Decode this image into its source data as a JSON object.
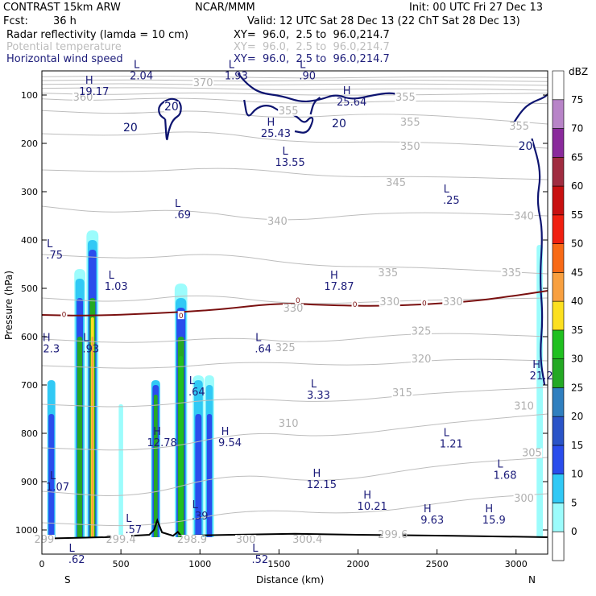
{
  "header": {
    "model": "CONTRAST 15km ARW",
    "center": "NCAR/MMM",
    "init": "Init: 00 UTC Fri 27 Dec 13",
    "fcst_label": "Fcst:",
    "fcst_value": "36 h",
    "valid": "Valid: 12 UTC Sat 28 Dec 13 (22 ChT Sat 28 Dec 13)"
  },
  "fields": [
    {
      "name": "Radar reflectivity (lamda = 10 cm)",
      "xy": "XY=  96.0,  2.5 to  96.0,214.7",
      "color": "#000000"
    },
    {
      "name": "Potential temperature",
      "xy": "XY=  96.0,  2.5 to  96.0,214.7",
      "color": "#bdbdbd"
    },
    {
      "name": "Horizontal wind speed",
      "xy": "XY=  96.0,  2.5 to  96.0,214.7",
      "color": "#1c1c7a"
    }
  ],
  "chart_data": {
    "type": "cross-section",
    "xlabel": "Distance (km)",
    "ylabel": "Pressure (hPa)",
    "xlim": [
      0,
      3200
    ],
    "ylim": [
      1050,
      50
    ],
    "x_ticks": [
      0,
      500,
      1000,
      1500,
      2000,
      2500,
      3000
    ],
    "y_ticks": [
      100,
      200,
      300,
      400,
      500,
      600,
      700,
      800,
      900,
      1000
    ],
    "endpoints": {
      "left": "S",
      "right": "N"
    },
    "colorbar": {
      "unit": "dBZ",
      "levels": [
        0,
        5,
        10,
        15,
        20,
        25,
        30,
        35,
        40,
        45,
        50,
        55,
        60,
        65,
        70,
        75
      ],
      "colors": [
        "#ffffff",
        "#9cfcfc",
        "#31c9f5",
        "#2a4dec",
        "#2a54c8",
        "#2f7fbf",
        "#24a924",
        "#20c020",
        "#fce020",
        "#f8a040",
        "#f86a16",
        "#f02010",
        "#c81010",
        "#a02c40",
        "#8a2a9c",
        "#b884c8"
      ]
    },
    "theta_labels": [
      {
        "v": "370",
        "x": 1020,
        "p": 80
      },
      {
        "v": "360",
        "x": 260,
        "p": 110
      },
      {
        "v": "355",
        "x": 1560,
        "p": 138
      },
      {
        "v": "355",
        "x": 2300,
        "p": 110
      },
      {
        "v": "355",
        "x": 2330,
        "p": 162
      },
      {
        "v": "355",
        "x": 3020,
        "p": 170
      },
      {
        "v": "350",
        "x": 2330,
        "p": 212
      },
      {
        "v": "345",
        "x": 2240,
        "p": 287
      },
      {
        "v": "340",
        "x": 1490,
        "p": 367
      },
      {
        "v": "340",
        "x": 3050,
        "p": 356
      },
      {
        "v": "335",
        "x": 2190,
        "p": 473
      },
      {
        "v": "335",
        "x": 2970,
        "p": 473
      },
      {
        "v": "330",
        "x": 1590,
        "p": 547
      },
      {
        "v": "330",
        "x": 2200,
        "p": 533
      },
      {
        "v": "330",
        "x": 2600,
        "p": 533
      },
      {
        "v": "325",
        "x": 1540,
        "p": 628
      },
      {
        "v": "325",
        "x": 2400,
        "p": 594
      },
      {
        "v": "320",
        "x": 2400,
        "p": 652
      },
      {
        "v": "315",
        "x": 2280,
        "p": 722
      },
      {
        "v": "310",
        "x": 1560,
        "p": 785
      },
      {
        "v": "310",
        "x": 3050,
        "p": 749
      },
      {
        "v": "305",
        "x": 3100,
        "p": 846
      },
      {
        "v": "300",
        "x": 3050,
        "p": 940
      },
      {
        "v": "299.4",
        "x": 500,
        "p": 1025
      },
      {
        "v": "298.9",
        "x": 950,
        "p": 1025
      },
      {
        "v": "300",
        "x": 1290,
        "p": 1025
      },
      {
        "v": "300.4",
        "x": 1680,
        "p": 1025
      },
      {
        "v": "299.6",
        "x": 2220,
        "p": 1015
      },
      {
        "v": "299",
        "x": 15,
        "p": 1025
      }
    ],
    "wind_labels": [
      {
        "v": "20",
        "x": 820,
        "p": 130
      },
      {
        "v": "20",
        "x": 560,
        "p": 173
      },
      {
        "v": "20",
        "x": 1880,
        "p": 165
      },
      {
        "v": "20",
        "x": 3060,
        "p": 212
      }
    ],
    "zero_labels": [
      {
        "v": "0",
        "x": 140,
        "p": 554
      },
      {
        "v": "0",
        "x": 880,
        "p": 557
      },
      {
        "v": "0",
        "x": 1620,
        "p": 525
      },
      {
        "v": "0",
        "x": 1980,
        "p": 533
      },
      {
        "v": "0",
        "x": 2420,
        "p": 531
      }
    ],
    "extrema": [
      {
        "t": "L",
        "v": "2.04",
        "x": 630,
        "p": 64,
        "c": "navy"
      },
      {
        "t": "L",
        "v": "1.93",
        "x": 1230,
        "p": 64,
        "c": "navy"
      },
      {
        "t": "L",
        "v": ".90",
        "x": 1680,
        "p": 64,
        "c": "navy"
      },
      {
        "t": "H",
        "v": "19.17",
        "x": 330,
        "p": 97,
        "c": "navy"
      },
      {
        "t": "H",
        "v": "25.64",
        "x": 1960,
        "p": 118,
        "c": "navy"
      },
      {
        "t": "H",
        "v": "25.43",
        "x": 1480,
        "p": 183,
        "c": "navy"
      },
      {
        "t": "L",
        "v": "13.55",
        "x": 1570,
        "p": 243,
        "c": "navy"
      },
      {
        "t": "L",
        "v": ".25",
        "x": 2590,
        "p": 322,
        "c": "navy"
      },
      {
        "t": "L",
        "v": ".69",
        "x": 890,
        "p": 352,
        "c": "navy"
      },
      {
        "t": "L",
        "v": ".75",
        "x": 80,
        "p": 435,
        "c": "navy"
      },
      {
        "t": "L",
        "v": "1.03",
        "x": 470,
        "p": 500,
        "c": "navy"
      },
      {
        "t": "H",
        "v": "17.87",
        "x": 1880,
        "p": 500,
        "c": "navy"
      },
      {
        "t": "H",
        "v": "2.3",
        "x": 60,
        "p": 629,
        "c": "navy"
      },
      {
        "t": "L",
        "v": ".93",
        "x": 310,
        "p": 629,
        "c": "navy"
      },
      {
        "t": "L",
        "v": ".64",
        "x": 1400,
        "p": 629,
        "c": "navy"
      },
      {
        "t": "H",
        "v": "21.2",
        "x": 3160,
        "p": 685,
        "c": "navy"
      },
      {
        "t": "L",
        "v": ".64",
        "x": 980,
        "p": 718,
        "c": "navy"
      },
      {
        "t": "L",
        "v": "3.33",
        "x": 1750,
        "p": 725,
        "c": "navy"
      },
      {
        "t": "H",
        "v": "12.78",
        "x": 760,
        "p": 823,
        "c": "navy"
      },
      {
        "t": "H",
        "v": "9.54",
        "x": 1190,
        "p": 823,
        "c": "navy"
      },
      {
        "t": "L",
        "v": "1.21",
        "x": 2590,
        "p": 826,
        "c": "navy"
      },
      {
        "t": "L",
        "v": "1.68",
        "x": 2930,
        "p": 891,
        "c": "navy"
      },
      {
        "t": "L",
        "v": "1.07",
        "x": 100,
        "p": 915,
        "c": "navy"
      },
      {
        "t": "H",
        "v": "12.15",
        "x": 1770,
        "p": 910,
        "c": "navy"
      },
      {
        "t": "H",
        "v": "10.21",
        "x": 2090,
        "p": 955,
        "c": "navy"
      },
      {
        "t": "H",
        "v": "9.63",
        "x": 2470,
        "p": 983,
        "c": "navy"
      },
      {
        "t": "H",
        "v": "15.9",
        "x": 2860,
        "p": 983,
        "c": "navy"
      },
      {
        "t": "L",
        "v": ".39",
        "x": 1000,
        "p": 975,
        "c": "navy"
      },
      {
        "t": "L",
        "v": ".57",
        "x": 580,
        "p": 1003,
        "c": "navy"
      },
      {
        "t": "L",
        "v": ".62",
        "x": 220,
        "p": 1065,
        "c": "navy"
      },
      {
        "t": "L",
        "v": ".52",
        "x": 1380,
        "p": 1065,
        "c": "navy"
      }
    ]
  }
}
